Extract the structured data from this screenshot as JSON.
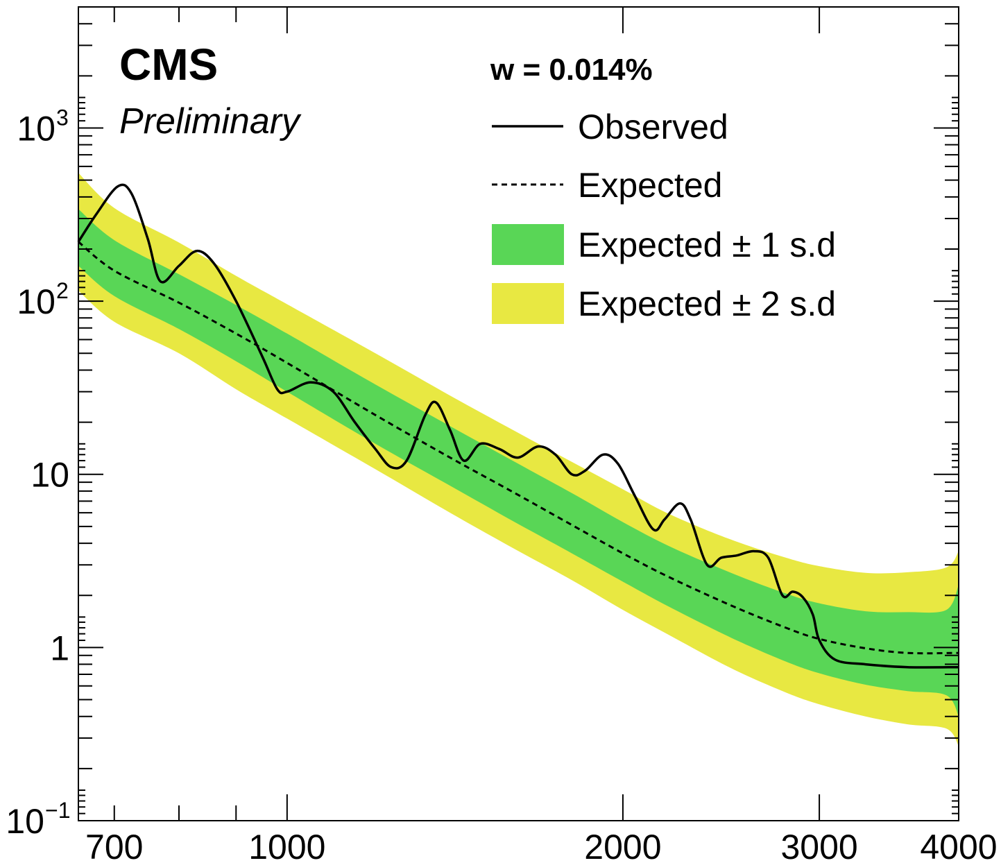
{
  "chart_data": {
    "type": "line",
    "experiment": "CMS",
    "status": "Preliminary",
    "width_label": "w = 0.014%",
    "xscale": "log",
    "yscale": "log",
    "xlim": [
      650,
      4000
    ],
    "ylim": [
      0.1,
      5000
    ],
    "x_tick_labels": [
      {
        "value": 700,
        "label": "700"
      },
      {
        "value": 1000,
        "label": "1000"
      },
      {
        "value": 2000,
        "label": "2000"
      },
      {
        "value": 3000,
        "label": "3000"
      },
      {
        "value": 4000,
        "label": "4000"
      }
    ],
    "y_tick_labels": [
      {
        "value": 0.1,
        "base": "10",
        "exp": "−1"
      },
      {
        "value": 1,
        "base": "1",
        "exp": ""
      },
      {
        "value": 10,
        "base": "10",
        "exp": ""
      },
      {
        "value": 100,
        "base": "10",
        "exp": "2"
      },
      {
        "value": 1000,
        "base": "10",
        "exp": "3"
      }
    ],
    "legend": {
      "position": "top-right",
      "entries": [
        {
          "label": "Observed",
          "style": "solid-line"
        },
        {
          "label": "Expected",
          "style": "dashed-line"
        },
        {
          "label": "Expected ± 1 s.d",
          "style": "green-box"
        },
        {
          "label": "Expected ± 2 s.d",
          "style": "yellow-box"
        }
      ]
    },
    "colors": {
      "band_1sd": "#59d656",
      "band_2sd": "#e8e842",
      "line": "#000000"
    },
    "expected": [
      [
        650,
        220
      ],
      [
        700,
        150
      ],
      [
        800,
        98
      ],
      [
        900,
        65
      ],
      [
        1000,
        44
      ],
      [
        1200,
        22
      ],
      [
        1400,
        12.5
      ],
      [
        1600,
        7.8
      ],
      [
        1800,
        5.1
      ],
      [
        2000,
        3.5
      ],
      [
        2200,
        2.55
      ],
      [
        2500,
        1.75
      ],
      [
        2800,
        1.3
      ],
      [
        3000,
        1.12
      ],
      [
        3300,
        0.99
      ],
      [
        3600,
        0.93
      ],
      [
        4000,
        0.93
      ]
    ],
    "band_1sd": {
      "x": [
        650,
        700,
        800,
        900,
        1000,
        1200,
        1400,
        1600,
        1800,
        2000,
        2200,
        2500,
        2800,
        3000,
        3300,
        3600,
        3900,
        4000
      ],
      "low": [
        160,
        107,
        69,
        45,
        30,
        15,
        8.6,
        5.3,
        3.5,
        2.4,
        1.72,
        1.14,
        0.83,
        0.71,
        0.61,
        0.56,
        0.53,
        0.4
      ],
      "high": [
        340,
        225,
        143,
        95,
        65,
        33,
        19,
        11.8,
        7.8,
        5.3,
        3.85,
        2.7,
        2.05,
        1.8,
        1.62,
        1.6,
        1.65,
        2.3
      ]
    },
    "band_2sd": {
      "x": [
        650,
        700,
        800,
        900,
        1000,
        1200,
        1400,
        1600,
        1800,
        2000,
        2200,
        2500,
        2800,
        3000,
        3300,
        3600,
        3900,
        4000
      ],
      "low": [
        115,
        76,
        50,
        31,
        21,
        10.7,
        6.0,
        3.7,
        2.45,
        1.65,
        1.18,
        0.76,
        0.55,
        0.47,
        0.4,
        0.36,
        0.34,
        0.27
      ],
      "high": [
        550,
        345,
        218,
        140,
        96,
        50,
        28.5,
        17.8,
        11.8,
        8.2,
        5.9,
        4.2,
        3.3,
        2.95,
        2.7,
        2.72,
        2.9,
        3.6
      ]
    },
    "observed": [
      [
        650,
        220
      ],
      [
        675,
        320
      ],
      [
        705,
        460
      ],
      [
        725,
        420
      ],
      [
        750,
        230
      ],
      [
        770,
        130
      ],
      [
        800,
        160
      ],
      [
        830,
        195
      ],
      [
        860,
        165
      ],
      [
        900,
        100
      ],
      [
        950,
        48
      ],
      [
        980,
        31
      ],
      [
        1000,
        30
      ],
      [
        1050,
        34
      ],
      [
        1100,
        30
      ],
      [
        1150,
        20
      ],
      [
        1200,
        14
      ],
      [
        1240,
        11
      ],
      [
        1280,
        12
      ],
      [
        1330,
        22
      ],
      [
        1360,
        26
      ],
      [
        1400,
        18
      ],
      [
        1440,
        12
      ],
      [
        1490,
        15
      ],
      [
        1550,
        14
      ],
      [
        1610,
        12.5
      ],
      [
        1680,
        14.5
      ],
      [
        1740,
        13
      ],
      [
        1800,
        10
      ],
      [
        1850,
        10.5
      ],
      [
        1920,
        13
      ],
      [
        1980,
        11.5
      ],
      [
        2050,
        7.5
      ],
      [
        2130,
        4.8
      ],
      [
        2180,
        5.5
      ],
      [
        2250,
        6.8
      ],
      [
        2300,
        5.5
      ],
      [
        2380,
        3.0
      ],
      [
        2450,
        3.3
      ],
      [
        2530,
        3.4
      ],
      [
        2620,
        3.6
      ],
      [
        2700,
        3.3
      ],
      [
        2780,
        2.0
      ],
      [
        2840,
        2.1
      ],
      [
        2900,
        1.95
      ],
      [
        2960,
        1.55
      ],
      [
        3000,
        1.1
      ],
      [
        3100,
        0.85
      ],
      [
        3300,
        0.8
      ],
      [
        3600,
        0.77
      ],
      [
        4000,
        0.77
      ]
    ]
  }
}
